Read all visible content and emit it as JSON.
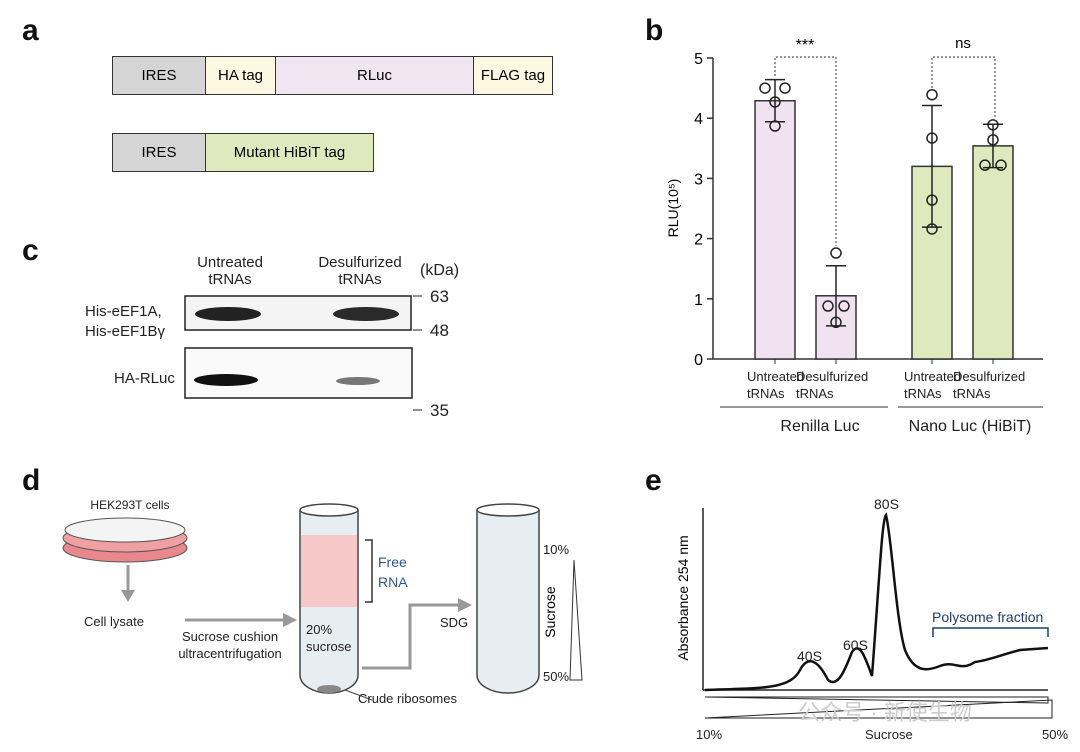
{
  "panel_a": {
    "label": "a",
    "construct_1": [
      "IRES",
      "HA tag",
      "RLuc",
      "FLAG tag"
    ],
    "construct_2": [
      "IRES",
      "Mutant HiBiT tag"
    ]
  },
  "chart_data": {
    "type": "bar",
    "label": "b",
    "ylabel": "RLU(10⁵)",
    "categories": [
      "Untreated tRNAs",
      "Desulfurized tRNAs",
      "Untreated tRNAs",
      "Desulfurized tRNAs"
    ],
    "groups": [
      "Renilla Luc",
      "Nano Luc (HiBiT)"
    ],
    "values": [
      4.29,
      1.05,
      3.2,
      3.54
    ],
    "errors": [
      0.35,
      0.5,
      1.01,
      0.36
    ],
    "points": [
      [
        4.5,
        4.5,
        4.27,
        3.87
      ],
      [
        1.76,
        0.88,
        0.88,
        0.61
      ],
      [
        4.39,
        3.67,
        2.64,
        2.16
      ],
      [
        3.89,
        3.64,
        3.22,
        3.22
      ]
    ],
    "colors": [
      "#f0e2f0",
      "#f0e2f0",
      "#dfe9bd",
      "#dfe9bd"
    ],
    "annotations": [
      "***",
      "ns"
    ],
    "ylim": [
      0,
      5
    ],
    "yticks": [
      0,
      1,
      2,
      3,
      4,
      5
    ]
  },
  "panel_c": {
    "label": "c",
    "columns": [
      "Untreated tRNAs",
      "Desulfurized tRNAs"
    ],
    "unit": "(kDa)",
    "rows": [
      "His-eEF1A, His-eEF1Bγ",
      "HA-RLuc"
    ],
    "markers": [
      "63",
      "48",
      "35"
    ]
  },
  "panel_d": {
    "label": "d",
    "cells": "HEK293T cells",
    "lysate": "Cell lysate",
    "step": "Sucrose cushion ultracentrifugation",
    "cushion": "20% sucrose",
    "free_rna": "Free RNA",
    "sdg": "SDG",
    "top": "10%",
    "gradient": "Sucrose",
    "bottom": "50%",
    "pellet": "Crude ribosomes"
  },
  "panel_e": {
    "label": "e",
    "ylabel": "Absorbance 254 nm",
    "peaks": [
      "40S",
      "60S",
      "80S"
    ],
    "polysome": "Polysome fraction",
    "x_start": "10%",
    "xlabel": "Sucrose",
    "x_end": "50%"
  },
  "watermark": "公众号 · 新使生物"
}
